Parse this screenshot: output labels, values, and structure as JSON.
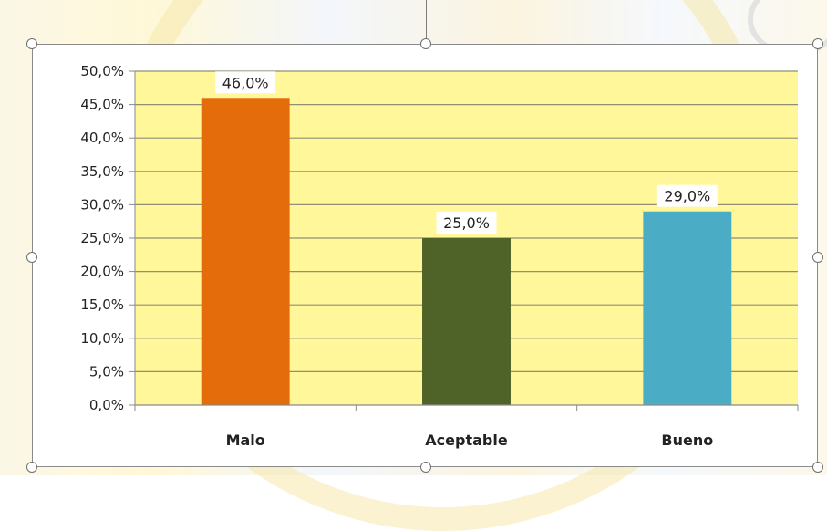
{
  "chart_data": {
    "type": "bar",
    "categories": [
      "Malo",
      "Aceptable",
      "Bueno"
    ],
    "values": [
      46.0,
      25.0,
      29.0
    ],
    "data_labels": [
      "46,0%",
      "25,0%",
      "29,0%"
    ],
    "bar_colors": [
      "#e46c0a",
      "#4f6228",
      "#4bacc6"
    ],
    "plot_background": "#fff799",
    "gridline_color": "#8f8f78",
    "ylim": [
      0,
      50
    ],
    "yticks": [
      "0,0%",
      "5,0%",
      "10,0%",
      "15,0%",
      "20,0%",
      "25,0%",
      "30,0%",
      "35,0%",
      "40,0%",
      "45,0%",
      "50,0%"
    ],
    "grid": true,
    "legend": "none",
    "title": "",
    "xlabel": "",
    "ylabel": ""
  }
}
